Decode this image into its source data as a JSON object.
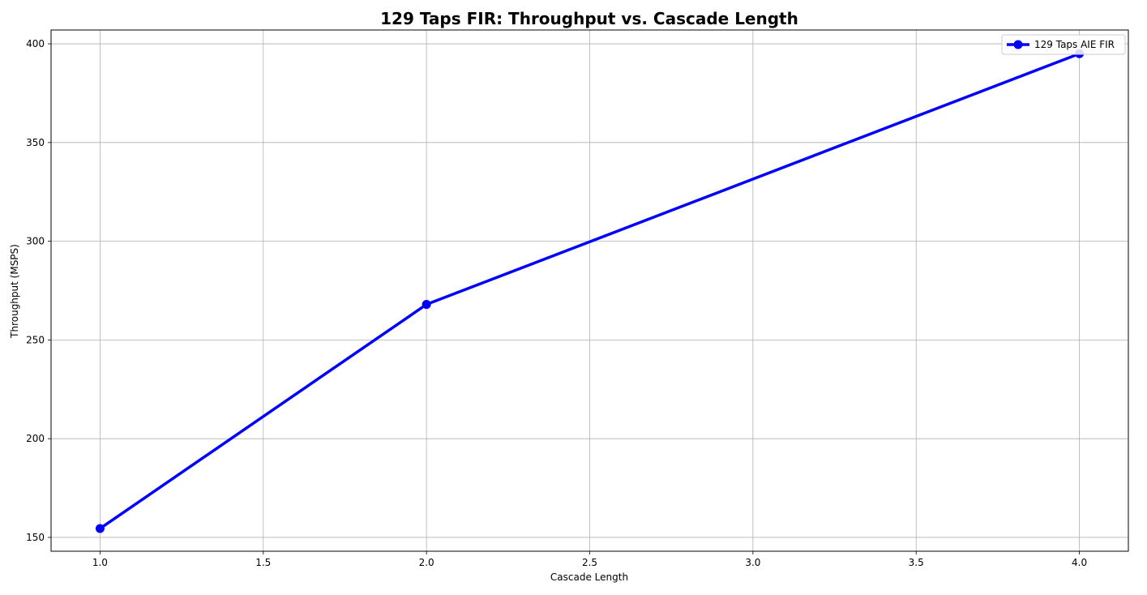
{
  "chart_data": {
    "type": "line",
    "title": "129 Taps FIR: Throughput vs. Cascade Length",
    "xlabel": "Cascade Length",
    "ylabel": "Throughput (MSPS)",
    "xlim": [
      0.85,
      4.15
    ],
    "ylim": [
      143,
      407
    ],
    "x_ticks": [
      1.0,
      1.5,
      2.0,
      2.5,
      3.0,
      3.5,
      4.0
    ],
    "x_tick_labels": [
      "1.0",
      "1.5",
      "2.0",
      "2.5",
      "3.0",
      "3.5",
      "4.0"
    ],
    "y_ticks": [
      150,
      200,
      250,
      300,
      350,
      400
    ],
    "y_tick_labels": [
      "150",
      "200",
      "250",
      "300",
      "350",
      "400"
    ],
    "grid": true,
    "legend_position": "top-right",
    "series": [
      {
        "name": "129 Taps AIE FIR",
        "color": "#0000ff",
        "marker": "circle",
        "x": [
          1,
          2,
          4
        ],
        "y": [
          154.5,
          268,
          395
        ]
      }
    ]
  }
}
